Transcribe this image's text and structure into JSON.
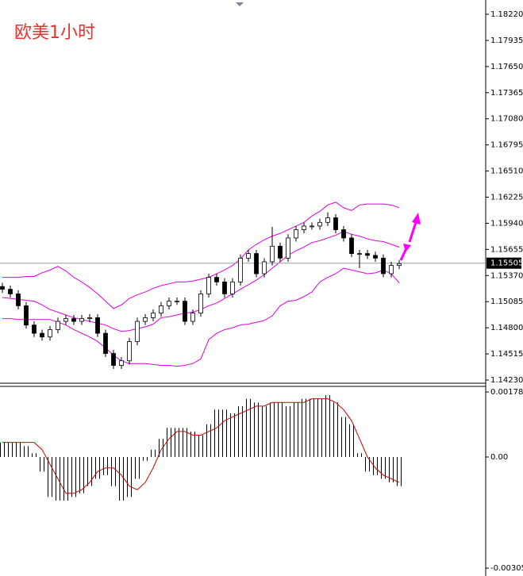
{
  "chart_data": [
    {
      "type": "candlestick",
      "title": "欧美1小时",
      "open": [
        1.1525,
        1.1522,
        1.1517,
        1.1504,
        1.1483,
        1.1474,
        1.147,
        1.1478,
        1.1487,
        1.149,
        1.1487,
        1.149,
        1.1491,
        1.1474,
        1.1452,
        1.1439,
        1.1444,
        1.1465,
        1.1487,
        1.1491,
        1.1496,
        1.1504,
        1.1509,
        1.1509,
        1.1487,
        1.1496,
        1.1517,
        1.1535,
        1.153,
        1.1517,
        1.153,
        1.1556,
        1.1561,
        1.1539,
        1.1552,
        1.1569,
        1.1556,
        1.1578,
        1.1587,
        1.1591,
        1.1591,
        1.1595,
        1.16,
        1.1587,
        1.1578,
        1.1561,
        1.1561,
        1.1559,
        1.1556,
        1.1539,
        1.1548
      ],
      "high": [
        1.1529,
        1.1526,
        1.1521,
        1.1508,
        1.1487,
        1.1478,
        1.1482,
        1.1491,
        1.1494,
        1.1494,
        1.1494,
        1.1495,
        1.1495,
        1.1478,
        1.1456,
        1.1448,
        1.1469,
        1.1491,
        1.1495,
        1.15,
        1.1508,
        1.1513,
        1.1513,
        1.1513,
        1.15,
        1.1521,
        1.1539,
        1.1539,
        1.1534,
        1.1534,
        1.156,
        1.1565,
        1.1565,
        1.1556,
        1.159,
        1.1573,
        1.1582,
        1.1591,
        1.1595,
        1.1595,
        1.1599,
        1.1606,
        1.1604,
        1.1591,
        1.1582,
        1.1565,
        1.1565,
        1.1563,
        1.156,
        1.1552,
        1.1554
      ],
      "low": [
        1.1518,
        1.1513,
        1.15,
        1.1479,
        1.147,
        1.1466,
        1.1466,
        1.1474,
        1.1483,
        1.1483,
        1.1483,
        1.1486,
        1.147,
        1.1448,
        1.1435,
        1.1435,
        1.144,
        1.1461,
        1.1483,
        1.1487,
        1.1492,
        1.15,
        1.1505,
        1.1483,
        1.1483,
        1.1492,
        1.1513,
        1.1526,
        1.1513,
        1.1513,
        1.1526,
        1.1552,
        1.1535,
        1.1535,
        1.1548,
        1.1552,
        1.1552,
        1.1574,
        1.1583,
        1.1587,
        1.1587,
        1.1591,
        1.1583,
        1.1574,
        1.1557,
        1.1545,
        1.1555,
        1.1552,
        1.1535,
        1.1535,
        1.1544
      ],
      "close": [
        1.1522,
        1.1517,
        1.1504,
        1.1483,
        1.1474,
        1.147,
        1.1478,
        1.1487,
        1.149,
        1.1487,
        1.149,
        1.1491,
        1.1474,
        1.1452,
        1.1439,
        1.1444,
        1.1465,
        1.1487,
        1.1491,
        1.1496,
        1.1504,
        1.1509,
        1.1509,
        1.1487,
        1.1496,
        1.1517,
        1.1535,
        1.153,
        1.1517,
        1.153,
        1.1556,
        1.1561,
        1.1539,
        1.1552,
        1.1569,
        1.1556,
        1.1578,
        1.1587,
        1.1591,
        1.1591,
        1.1595,
        1.16,
        1.1587,
        1.1578,
        1.1561,
        1.1561,
        1.1559,
        1.1556,
        1.1539,
        1.1548,
        1.155
      ],
      "bands": [
        {
          "color": "#e000e0",
          "values": [
            1.1535,
            1.1535,
            1.1535,
            1.1536,
            1.1536,
            1.154,
            1.1543,
            1.1547,
            1.1542,
            1.1535,
            1.153,
            1.1524,
            1.1517,
            1.1509,
            1.1501,
            1.1505,
            1.1512,
            1.1516,
            1.1519,
            1.1523,
            1.1526,
            1.1528,
            1.153,
            1.153,
            1.1531,
            1.1533,
            1.1535,
            1.1539,
            1.1543,
            1.1548,
            1.1555,
            1.1565,
            1.1571,
            1.1576,
            1.158,
            1.1583,
            1.1587,
            1.1591,
            1.1595,
            1.1602,
            1.1607,
            1.1614,
            1.1617,
            1.1611,
            1.1608,
            1.1614,
            1.1615,
            1.1615,
            1.1615,
            1.1614,
            1.1611
          ]
        },
        {
          "color": "#e000e0",
          "values": [
            1.1513,
            1.1512,
            1.1511,
            1.151,
            1.1509,
            1.1505,
            1.15,
            1.1497,
            1.1494,
            1.1491,
            1.1489,
            1.1487,
            1.1485,
            1.1483,
            1.1479,
            1.1476,
            1.1477,
            1.1479,
            1.1481,
            1.1484,
            1.1491,
            1.1492,
            1.1494,
            1.1496,
            1.1497,
            1.15,
            1.1504,
            1.1507,
            1.1512,
            1.1517,
            1.1522,
            1.1527,
            1.1532,
            1.1538,
            1.1545,
            1.1552,
            1.1559,
            1.1564,
            1.1568,
            1.1573,
            1.1575,
            1.1578,
            1.1581,
            1.1585,
            1.1582,
            1.158,
            1.1577,
            1.1575,
            1.1574,
            1.1571,
            1.1568
          ]
        },
        {
          "color": "#e000e0",
          "values": [
            1.149,
            1.149,
            1.1489,
            1.1489,
            1.1489,
            1.1489,
            1.1489,
            1.1486,
            1.1483,
            1.1478,
            1.1474,
            1.147,
            1.1465,
            1.1458,
            1.145,
            1.1444,
            1.1441,
            1.1441,
            1.1441,
            1.144,
            1.1439,
            1.1439,
            1.1438,
            1.1439,
            1.1441,
            1.1446,
            1.1467,
            1.1474,
            1.1478,
            1.148,
            1.1483,
            1.1484,
            1.1486,
            1.1488,
            1.1493,
            1.1504,
            1.1509,
            1.151,
            1.1514,
            1.1519,
            1.153,
            1.1535,
            1.1539,
            1.1545,
            1.1543,
            1.1541,
            1.1539,
            1.154,
            1.1543,
            1.1539,
            1.1529
          ]
        }
      ],
      "current_price": {
        "value": 1.15505,
        "label": "1.15505"
      },
      "ylim": [
        1.14204,
        1.18376
      ],
      "yticks": [
        {
          "value": 1.1822,
          "label": "1.18220"
        },
        {
          "value": 1.17935,
          "label": "1.17935"
        },
        {
          "value": 1.1765,
          "label": "1.17650"
        },
        {
          "value": 1.17365,
          "label": "1.17365"
        },
        {
          "value": 1.1708,
          "label": "1.17080"
        },
        {
          "value": 1.16795,
          "label": "1.16795"
        },
        {
          "value": 1.1651,
          "label": "1.16510"
        },
        {
          "value": 1.16225,
          "label": "1.16225"
        },
        {
          "value": 1.1594,
          "label": "1.15940"
        },
        {
          "value": 1.15655,
          "label": "1.15655"
        },
        {
          "value": 1.1537,
          "label": "1.15370"
        },
        {
          "value": 1.15085,
          "label": "1.15085"
        },
        {
          "value": 1.148,
          "label": "1.14800"
        },
        {
          "value": 1.14515,
          "label": "1.14515"
        },
        {
          "value": 1.1423,
          "label": "1.14230"
        }
      ]
    },
    {
      "type": "macd",
      "bars": {
        "color": "#000000",
        "values": [
          0.0004,
          0.0004,
          0.0004,
          0.0003,
          0.0001,
          -0.0004,
          -0.0011,
          -0.0012,
          -0.0012,
          -0.0011,
          -0.001,
          -0.0008,
          -0.0006,
          -0.0005,
          -0.0008,
          -0.0012,
          -0.0011,
          -0.0006,
          -0.0001,
          0.0002,
          0.0005,
          0.0008,
          0.0008,
          0.0008,
          0.0007,
          0.0006,
          0.0009,
          0.0013,
          0.0013,
          0.0012,
          0.0014,
          0.0016,
          0.0015,
          0.0014,
          0.0015,
          0.0015,
          0.0014,
          0.0015,
          0.0016,
          0.0016,
          0.0016,
          0.0017,
          0.0015,
          0.0011,
          0.0009,
          0.0001,
          -0.0004,
          -0.0005,
          -0.0006,
          -0.0007,
          -0.0008
        ]
      },
      "signal": {
        "color": "#cc0000",
        "values": [
          0.0004,
          0.0004,
          0.0004,
          0.0004,
          0.0004,
          0.0002,
          -0.0002,
          -0.0006,
          -0.001,
          -0.001,
          -0.0009,
          -0.0007,
          -0.0004,
          -0.0003,
          -0.0003,
          -0.0005,
          -0.0008,
          -0.0009,
          -0.0007,
          -0.0003,
          0.0002,
          0.0005,
          0.0007,
          0.0007,
          0.0006,
          0.0006,
          0.0007,
          0.0008,
          0.001,
          0.0011,
          0.0012,
          0.0013,
          0.0014,
          0.0014,
          0.0015,
          0.0015,
          0.0015,
          0.0015,
          0.0015,
          0.0016,
          0.0016,
          0.0016,
          0.0015,
          0.0013,
          0.001,
          0.0005,
          0.0,
          -0.0003,
          -0.0005,
          -0.0006,
          -0.0007
        ]
      },
      "ylim": [
        -0.00323,
        0.00192
      ],
      "yticks": [
        0.001788,
        {
          "value": 0,
          "label": "0.00"
        },
        -0.003058
      ]
    }
  ]
}
